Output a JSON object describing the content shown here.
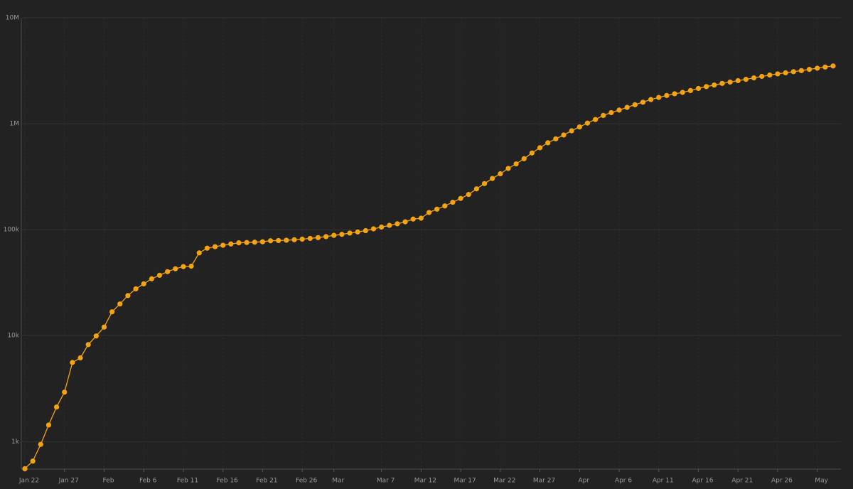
{
  "chart_data": {
    "type": "line",
    "log_scale": true,
    "grid": true,
    "background": "#222222",
    "color": "#f5a30f",
    "x": [
      "Jan 22",
      "Jan 23",
      "Jan 24",
      "Jan 25",
      "Jan 26",
      "Jan 27",
      "Jan 28",
      "Jan 29",
      "Jan 30",
      "Jan 31",
      "Feb 1",
      "Feb 2",
      "Feb 3",
      "Feb 4",
      "Feb 5",
      "Feb 6",
      "Feb 7",
      "Feb 8",
      "Feb 9",
      "Feb 10",
      "Feb 11",
      "Feb 12",
      "Feb 13",
      "Feb 14",
      "Feb 15",
      "Feb 16",
      "Feb 17",
      "Feb 18",
      "Feb 19",
      "Feb 20",
      "Feb 21",
      "Feb 22",
      "Feb 23",
      "Feb 24",
      "Feb 25",
      "Feb 26",
      "Feb 27",
      "Feb 28",
      "Feb 29",
      "Mar 1",
      "Mar 2",
      "Mar 3",
      "Mar 4",
      "Mar 5",
      "Mar 6",
      "Mar 7",
      "Mar 8",
      "Mar 9",
      "Mar 10",
      "Mar 11",
      "Mar 12",
      "Mar 13",
      "Mar 14",
      "Mar 15",
      "Mar 16",
      "Mar 17",
      "Mar 18",
      "Mar 19",
      "Mar 20",
      "Mar 21",
      "Mar 22",
      "Mar 23",
      "Mar 24",
      "Mar 25",
      "Mar 26",
      "Mar 27",
      "Mar 28",
      "Mar 29",
      "Mar 30",
      "Mar 31",
      "Apr 1",
      "Apr 2",
      "Apr 3",
      "Apr 4",
      "Apr 5",
      "Apr 6",
      "Apr 7",
      "Apr 8",
      "Apr 9",
      "Apr 10",
      "Apr 11",
      "Apr 12",
      "Apr 13",
      "Apr 14",
      "Apr 15",
      "Apr 16",
      "Apr 17",
      "Apr 18",
      "Apr 19",
      "Apr 20",
      "Apr 21",
      "Apr 22",
      "Apr 23",
      "Apr 24",
      "Apr 25",
      "Apr 26",
      "Apr 27",
      "Apr 28",
      "Apr 29",
      "Apr 30",
      "May 1",
      "May 2",
      "May 3"
    ],
    "values": [
      555,
      654,
      941,
      1434,
      2118,
      2927,
      5578,
      6166,
      8234,
      9927,
      12038,
      16787,
      19887,
      23898,
      27643,
      30802,
      34395,
      37129,
      40160,
      42769,
      44811,
      45229,
      60381,
      66908,
      69052,
      71235,
      73270,
      75152,
      75652,
      76212,
      76841,
      78602,
      78982,
      79546,
      80399,
      81376,
      82738,
      84122,
      86013,
      88371,
      90309,
      92844,
      95124,
      97886,
      101800,
      105836,
      109835,
      113582,
      118582,
      125865,
      128343,
      145193,
      156097,
      167449,
      181546,
      197168,
      214915,
      242713,
      272167,
      304528,
      337020,
      378287,
      418041,
      467653,
      529591,
      593291,
      660706,
      720117,
      782365,
      857487,
      932605,
      1013466,
      1095917,
      1197405,
      1272115,
      1345101,
      1426096,
      1511104,
      1595350,
      1691719,
      1771514,
      1846680,
      1917320,
      1976192,
      2056054,
      2152437,
      2240190,
      2317758,
      2401378,
      2472259,
      2549294,
      2624068,
      2708403,
      2795736,
      2881140,
      2955033,
      3023722,
      3097229,
      3172287,
      3256846,
      3343777,
      3427584,
      3506729
    ],
    "ylim": [
      550,
      10000000
    ],
    "yticks": [
      {
        "value": 1000,
        "label": "1k"
      },
      {
        "value": 10000,
        "label": "10k"
      },
      {
        "value": 100000,
        "label": "100k"
      },
      {
        "value": 1000000,
        "label": "1M"
      },
      {
        "value": 10000000,
        "label": "10M"
      }
    ],
    "xticks": [
      "Jan 22",
      "Jan 27",
      {
        "value": "Feb 1",
        "label": "Feb"
      },
      "Feb 6",
      "Feb 11",
      "Feb 16",
      "Feb 21",
      "Feb 26",
      {
        "value": "Mar 1",
        "label": "Mar"
      },
      "Mar 7",
      "Mar 12",
      "Mar 17",
      "Mar 22",
      "Mar 27",
      {
        "value": "Apr 1",
        "label": "Apr"
      },
      "Apr 6",
      "Apr 11",
      "Apr 16",
      "Apr 21",
      "Apr 26",
      {
        "value": "May 1",
        "label": "May"
      }
    ]
  }
}
